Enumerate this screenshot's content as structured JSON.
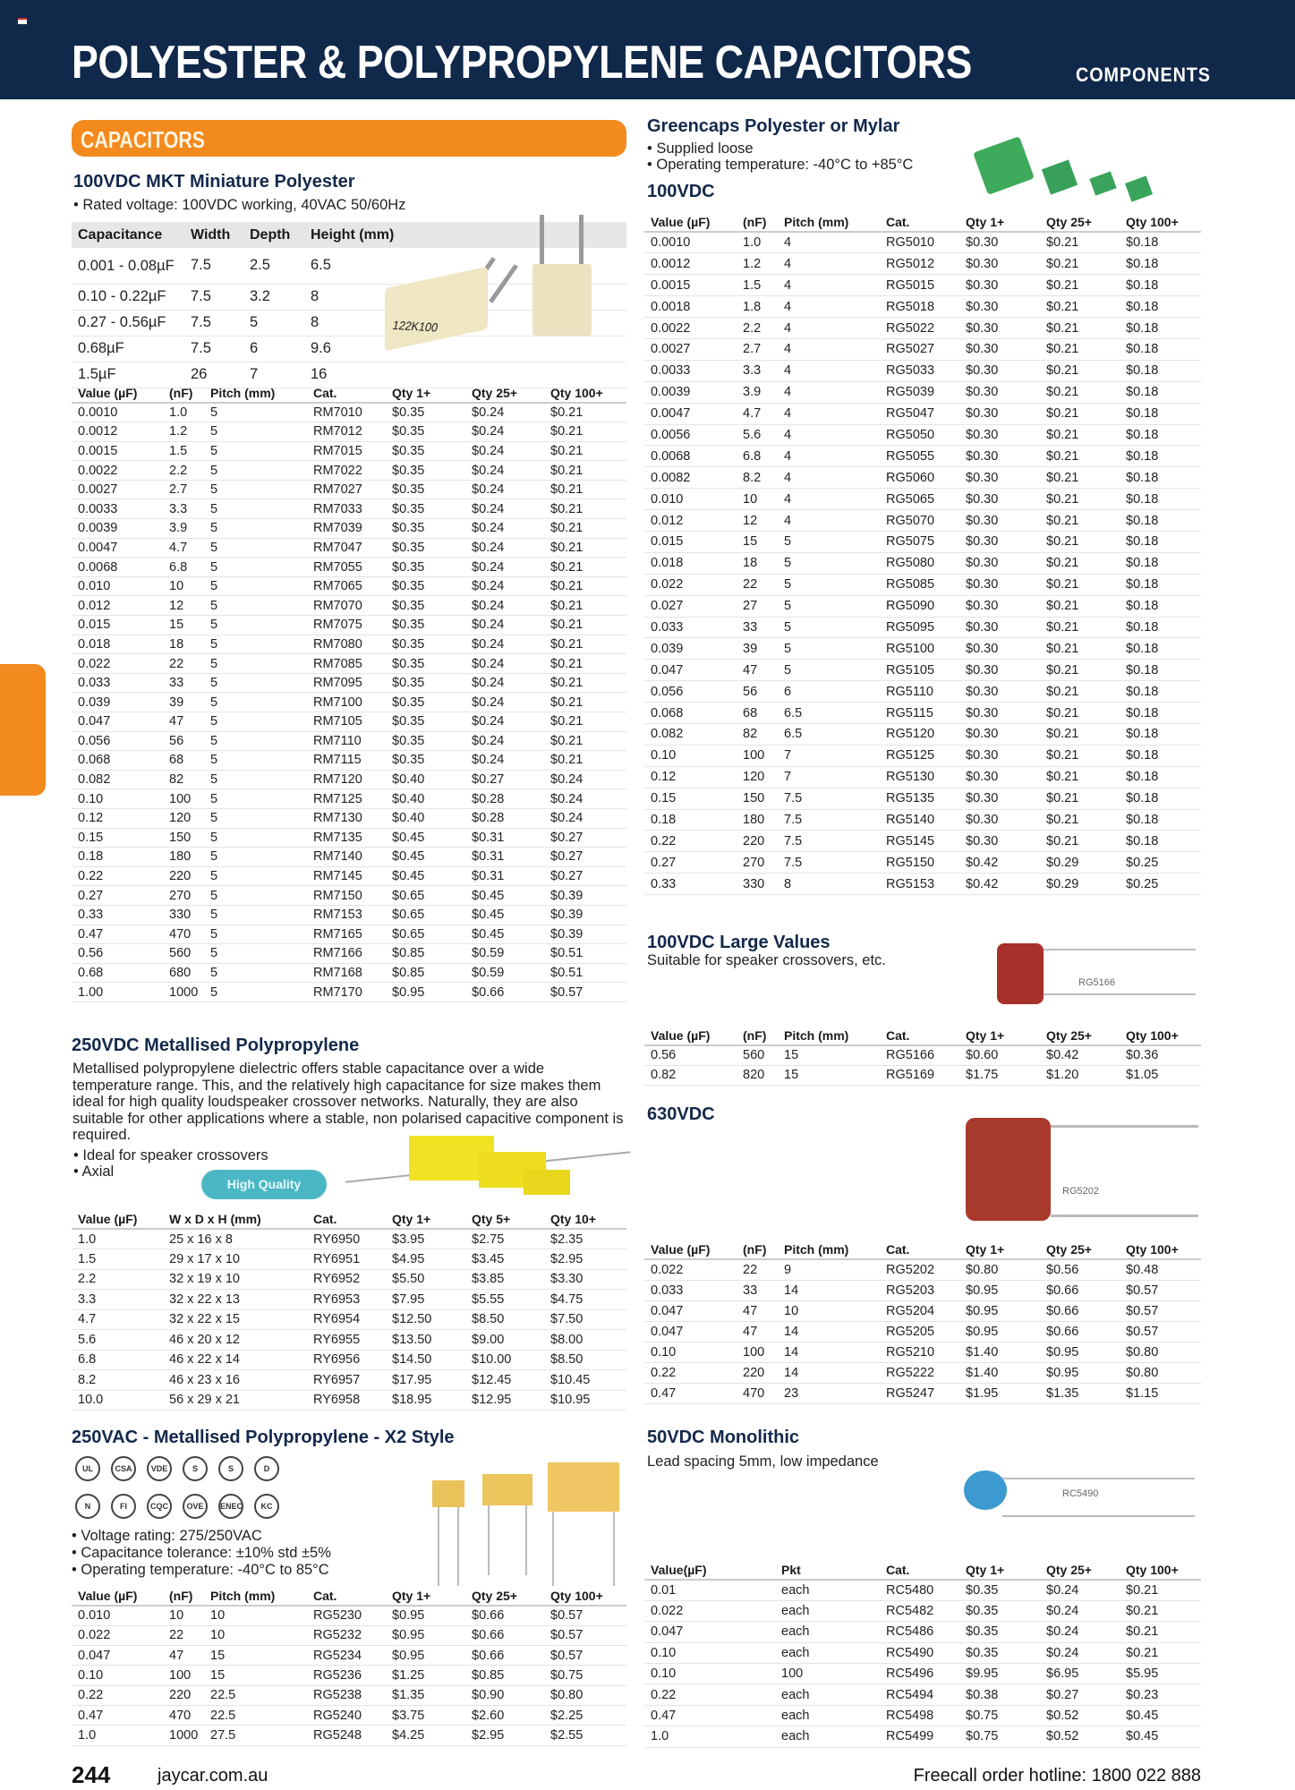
{
  "header": {
    "title": "POLYESTER & POLYPROPYLENE CAPACITORS",
    "section": "COMPONENTS"
  },
  "category_bar": "CAPACITORS",
  "mkt": {
    "title": "100VDC MKT Miniature Polyester",
    "bullet": "• Rated voltage: 100VDC working, 40VAC 50/60Hz",
    "image_label": "122K100",
    "spec": {
      "headers": [
        "Capacitance",
        "Width",
        "Depth",
        "Height (mm)"
      ],
      "rows": [
        [
          "0.001 - 0.08µF",
          "7.5",
          "2.5",
          "6.5"
        ],
        [
          "0.10 - 0.22µF",
          "7.5",
          "3.2",
          "8"
        ],
        [
          "0.27 - 0.56µF",
          "7.5",
          "5",
          "8"
        ],
        [
          "0.68µF",
          "7.5",
          "6",
          "9.6"
        ],
        [
          "1.5µF",
          "26",
          "7",
          "16"
        ]
      ]
    },
    "table": {
      "headers": [
        "Value (µF)",
        "(nF)",
        "Pitch (mm)",
        "Cat.",
        "Qty 1+",
        "Qty 25+",
        "Qty 100+"
      ],
      "rows": [
        [
          "0.0010",
          "1.0",
          "5",
          "RM7010",
          "$0.35",
          "$0.24",
          "$0.21"
        ],
        [
          "0.0012",
          "1.2",
          "5",
          "RM7012",
          "$0.35",
          "$0.24",
          "$0.21"
        ],
        [
          "0.0015",
          "1.5",
          "5",
          "RM7015",
          "$0.35",
          "$0.24",
          "$0.21"
        ],
        [
          "0.0022",
          "2.2",
          "5",
          "RM7022",
          "$0.35",
          "$0.24",
          "$0.21"
        ],
        [
          "0.0027",
          "2.7",
          "5",
          "RM7027",
          "$0.35",
          "$0.24",
          "$0.21"
        ],
        [
          "0.0033",
          "3.3",
          "5",
          "RM7033",
          "$0.35",
          "$0.24",
          "$0.21"
        ],
        [
          "0.0039",
          "3.9",
          "5",
          "RM7039",
          "$0.35",
          "$0.24",
          "$0.21"
        ],
        [
          "0.0047",
          "4.7",
          "5",
          "RM7047",
          "$0.35",
          "$0.24",
          "$0.21"
        ],
        [
          "0.0068",
          "6.8",
          "5",
          "RM7055",
          "$0.35",
          "$0.24",
          "$0.21"
        ],
        [
          "0.010",
          "10",
          "5",
          "RM7065",
          "$0.35",
          "$0.24",
          "$0.21"
        ],
        [
          "0.012",
          "12",
          "5",
          "RM7070",
          "$0.35",
          "$0.24",
          "$0.21"
        ],
        [
          "0.015",
          "15",
          "5",
          "RM7075",
          "$0.35",
          "$0.24",
          "$0.21"
        ],
        [
          "0.018",
          "18",
          "5",
          "RM7080",
          "$0.35",
          "$0.24",
          "$0.21"
        ],
        [
          "0.022",
          "22",
          "5",
          "RM7085",
          "$0.35",
          "$0.24",
          "$0.21"
        ],
        [
          "0.033",
          "33",
          "5",
          "RM7095",
          "$0.35",
          "$0.24",
          "$0.21"
        ],
        [
          "0.039",
          "39",
          "5",
          "RM7100",
          "$0.35",
          "$0.24",
          "$0.21"
        ],
        [
          "0.047",
          "47",
          "5",
          "RM7105",
          "$0.35",
          "$0.24",
          "$0.21"
        ],
        [
          "0.056",
          "56",
          "5",
          "RM7110",
          "$0.35",
          "$0.24",
          "$0.21"
        ],
        [
          "0.068",
          "68",
          "5",
          "RM7115",
          "$0.35",
          "$0.24",
          "$0.21"
        ],
        [
          "0.082",
          "82",
          "5",
          "RM7120",
          "$0.40",
          "$0.27",
          "$0.24"
        ],
        [
          "0.10",
          "100",
          "5",
          "RM7125",
          "$0.40",
          "$0.28",
          "$0.24"
        ],
        [
          "0.12",
          "120",
          "5",
          "RM7130",
          "$0.40",
          "$0.28",
          "$0.24"
        ],
        [
          "0.15",
          "150",
          "5",
          "RM7135",
          "$0.45",
          "$0.31",
          "$0.27"
        ],
        [
          "0.18",
          "180",
          "5",
          "RM7140",
          "$0.45",
          "$0.31",
          "$0.27"
        ],
        [
          "0.22",
          "220",
          "5",
          "RM7145",
          "$0.45",
          "$0.31",
          "$0.27"
        ],
        [
          "0.27",
          "270",
          "5",
          "RM7150",
          "$0.65",
          "$0.45",
          "$0.39"
        ],
        [
          "0.33",
          "330",
          "5",
          "RM7153",
          "$0.65",
          "$0.45",
          "$0.39"
        ],
        [
          "0.47",
          "470",
          "5",
          "RM7165",
          "$0.65",
          "$0.45",
          "$0.39"
        ],
        [
          "0.56",
          "560",
          "5",
          "RM7166",
          "$0.85",
          "$0.59",
          "$0.51"
        ],
        [
          "0.68",
          "680",
          "5",
          "RM7168",
          "$0.85",
          "$0.59",
          "$0.51"
        ],
        [
          "1.00",
          "1000",
          "5",
          "RM7170",
          "$0.95",
          "$0.66",
          "$0.57"
        ]
      ]
    }
  },
  "ry": {
    "title": "250VDC Metallised Polypropylene",
    "description": "Metallised polypropylene dielectric offers stable capacitance over a wide temperature range. This, and the relatively high capacitance for size makes them ideal for high quality loudspeaker crossover networks. Naturally, they are also suitable for other applications where a stable, non polarised capacitive component is required.",
    "bullets": [
      "• Ideal for speaker crossovers",
      "• Axial"
    ],
    "badge": "High Quality",
    "table": {
      "headers": [
        "Value (µF)",
        "W x D x H (mm)",
        "Cat.",
        "Qty 1+",
        "Qty 5+",
        "Qty 10+"
      ],
      "rows": [
        [
          "1.0",
          "25 x 16 x 8",
          "RY6950",
          "$3.95",
          "$2.75",
          "$2.35"
        ],
        [
          "1.5",
          "29 x 17 x 10",
          "RY6951",
          "$4.95",
          "$3.45",
          "$2.95"
        ],
        [
          "2.2",
          "32 x 19 x 10",
          "RY6952",
          "$5.50",
          "$3.85",
          "$3.30"
        ],
        [
          "3.3",
          "32 x 22 x 13",
          "RY6953",
          "$7.95",
          "$5.55",
          "$4.75"
        ],
        [
          "4.7",
          "32 x 22 x 15",
          "RY6954",
          "$12.50",
          "$8.50",
          "$7.50"
        ],
        [
          "5.6",
          "46 x 20 x 12",
          "RY6955",
          "$13.50",
          "$9.00",
          "$8.00"
        ],
        [
          "6.8",
          "46 x 22 x 14",
          "RY6956",
          "$14.50",
          "$10.00",
          "$8.50"
        ],
        [
          "8.2",
          "46 x 23 x 16",
          "RY6957",
          "$17.95",
          "$12.45",
          "$10.45"
        ],
        [
          "10.0",
          "56 x 29 x 21",
          "RY6958",
          "$18.95",
          "$12.95",
          "$10.95"
        ]
      ]
    }
  },
  "x2": {
    "title": "250VAC - Metallised Polypropylene - X2 Style",
    "cert_marks": [
      "UL",
      "CSA",
      "VDE",
      "S",
      "S",
      "D",
      "N",
      "FI",
      "CQC",
      "OVE",
      "ENEC",
      "KC"
    ],
    "bullets": [
      "• Voltage rating: 275/250VAC",
      "• Capacitance tolerance: ±10% std ±5%",
      "• Operating temperature: -40°C to 85°C"
    ],
    "table": {
      "headers": [
        "Value (µF)",
        "(nF)",
        "Pitch (mm)",
        "Cat.",
        "Qty 1+",
        "Qty 25+",
        "Qty 100+"
      ],
      "rows": [
        [
          "0.010",
          "10",
          "10",
          "RG5230",
          "$0.95",
          "$0.66",
          "$0.57"
        ],
        [
          "0.022",
          "22",
          "10",
          "RG5232",
          "$0.95",
          "$0.66",
          "$0.57"
        ],
        [
          "0.047",
          "47",
          "15",
          "RG5234",
          "$0.95",
          "$0.66",
          "$0.57"
        ],
        [
          "0.10",
          "100",
          "15",
          "RG5236",
          "$1.25",
          "$0.85",
          "$0.75"
        ],
        [
          "0.22",
          "220",
          "22.5",
          "RG5238",
          "$1.35",
          "$0.90",
          "$0.80"
        ],
        [
          "0.47",
          "470",
          "22.5",
          "RG5240",
          "$3.75",
          "$2.60",
          "$2.25"
        ],
        [
          "1.0",
          "1000",
          "27.5",
          "RG5248",
          "$4.25",
          "$2.95",
          "$2.55"
        ]
      ]
    }
  },
  "greencaps": {
    "title": "Greencaps Polyester or Mylar",
    "bullets": [
      "• Supplied loose",
      "• Operating temperature: -40°C to +85°C"
    ],
    "subtitle": "100VDC",
    "table": {
      "headers": [
        "Value (µF)",
        "(nF)",
        "Pitch (mm)",
        "Cat.",
        "Qty 1+",
        "Qty 25+",
        "Qty 100+"
      ],
      "rows": [
        [
          "0.0010",
          "1.0",
          "4",
          "RG5010",
          "$0.30",
          "$0.21",
          "$0.18"
        ],
        [
          "0.0012",
          "1.2",
          "4",
          "RG5012",
          "$0.30",
          "$0.21",
          "$0.18"
        ],
        [
          "0.0015",
          "1.5",
          "4",
          "RG5015",
          "$0.30",
          "$0.21",
          "$0.18"
        ],
        [
          "0.0018",
          "1.8",
          "4",
          "RG5018",
          "$0.30",
          "$0.21",
          "$0.18"
        ],
        [
          "0.0022",
          "2.2",
          "4",
          "RG5022",
          "$0.30",
          "$0.21",
          "$0.18"
        ],
        [
          "0.0027",
          "2.7",
          "4",
          "RG5027",
          "$0.30",
          "$0.21",
          "$0.18"
        ],
        [
          "0.0033",
          "3.3",
          "4",
          "RG5033",
          "$0.30",
          "$0.21",
          "$0.18"
        ],
        [
          "0.0039",
          "3.9",
          "4",
          "RG5039",
          "$0.30",
          "$0.21",
          "$0.18"
        ],
        [
          "0.0047",
          "4.7",
          "4",
          "RG5047",
          "$0.30",
          "$0.21",
          "$0.18"
        ],
        [
          "0.0056",
          "5.6",
          "4",
          "RG5050",
          "$0.30",
          "$0.21",
          "$0.18"
        ],
        [
          "0.0068",
          "6.8",
          "4",
          "RG5055",
          "$0.30",
          "$0.21",
          "$0.18"
        ],
        [
          "0.0082",
          "8.2",
          "4",
          "RG5060",
          "$0.30",
          "$0.21",
          "$0.18"
        ],
        [
          "0.010",
          "10",
          "4",
          "RG5065",
          "$0.30",
          "$0.21",
          "$0.18"
        ],
        [
          "0.012",
          "12",
          "4",
          "RG5070",
          "$0.30",
          "$0.21",
          "$0.18"
        ],
        [
          "0.015",
          "15",
          "5",
          "RG5075",
          "$0.30",
          "$0.21",
          "$0.18"
        ],
        [
          "0.018",
          "18",
          "5",
          "RG5080",
          "$0.30",
          "$0.21",
          "$0.18"
        ],
        [
          "0.022",
          "22",
          "5",
          "RG5085",
          "$0.30",
          "$0.21",
          "$0.18"
        ],
        [
          "0.027",
          "27",
          "5",
          "RG5090",
          "$0.30",
          "$0.21",
          "$0.18"
        ],
        [
          "0.033",
          "33",
          "5",
          "RG5095",
          "$0.30",
          "$0.21",
          "$0.18"
        ],
        [
          "0.039",
          "39",
          "5",
          "RG5100",
          "$0.30",
          "$0.21",
          "$0.18"
        ],
        [
          "0.047",
          "47",
          "5",
          "RG5105",
          "$0.30",
          "$0.21",
          "$0.18"
        ],
        [
          "0.056",
          "56",
          "6",
          "RG5110",
          "$0.30",
          "$0.21",
          "$0.18"
        ],
        [
          "0.068",
          "68",
          "6.5",
          "RG5115",
          "$0.30",
          "$0.21",
          "$0.18"
        ],
        [
          "0.082",
          "82",
          "6.5",
          "RG5120",
          "$0.30",
          "$0.21",
          "$0.18"
        ],
        [
          "0.10",
          "100",
          "7",
          "RG5125",
          "$0.30",
          "$0.21",
          "$0.18"
        ],
        [
          "0.12",
          "120",
          "7",
          "RG5130",
          "$0.30",
          "$0.21",
          "$0.18"
        ],
        [
          "0.15",
          "150",
          "7.5",
          "RG5135",
          "$0.30",
          "$0.21",
          "$0.18"
        ],
        [
          "0.18",
          "180",
          "7.5",
          "RG5140",
          "$0.30",
          "$0.21",
          "$0.18"
        ],
        [
          "0.22",
          "220",
          "7.5",
          "RG5145",
          "$0.30",
          "$0.21",
          "$0.18"
        ],
        [
          "0.27",
          "270",
          "7.5",
          "RG5150",
          "$0.42",
          "$0.29",
          "$0.25"
        ],
        [
          "0.33",
          "330",
          "8",
          "RG5153",
          "$0.42",
          "$0.29",
          "$0.25"
        ]
      ]
    }
  },
  "large": {
    "title": "100VDC Large Values",
    "subtitle": "Suitable for speaker crossovers, etc.",
    "image_label": "RG5166",
    "table": {
      "headers": [
        "Value (µF)",
        "(nF)",
        "Pitch (mm)",
        "Cat.",
        "Qty 1+",
        "Qty 25+",
        "Qty 100+"
      ],
      "rows": [
        [
          "0.56",
          "560",
          "15",
          "RG5166",
          "$0.60",
          "$0.42",
          "$0.36"
        ],
        [
          "0.82",
          "820",
          "15",
          "RG5169",
          "$1.75",
          "$1.20",
          "$1.05"
        ]
      ]
    }
  },
  "v630": {
    "title": "630VDC",
    "image_label": "RG5202",
    "table": {
      "headers": [
        "Value (µF)",
        "(nF)",
        "Pitch (mm)",
        "Cat.",
        "Qty 1+",
        "Qty 25+",
        "Qty 100+"
      ],
      "rows": [
        [
          "0.022",
          "22",
          "9",
          "RG5202",
          "$0.80",
          "$0.56",
          "$0.48"
        ],
        [
          "0.033",
          "33",
          "14",
          "RG5203",
          "$0.95",
          "$0.66",
          "$0.57"
        ],
        [
          "0.047",
          "47",
          "10",
          "RG5204",
          "$0.95",
          "$0.66",
          "$0.57"
        ],
        [
          "0.047",
          "47",
          "14",
          "RG5205",
          "$0.95",
          "$0.66",
          "$0.57"
        ],
        [
          "0.10",
          "100",
          "14",
          "RG5210",
          "$1.40",
          "$0.95",
          "$0.80"
        ],
        [
          "0.22",
          "220",
          "14",
          "RG5222",
          "$1.40",
          "$0.95",
          "$0.80"
        ],
        [
          "0.47",
          "470",
          "23",
          "RG5247",
          "$1.95",
          "$1.35",
          "$1.15"
        ]
      ]
    }
  },
  "mono": {
    "title": "50VDC Monolithic",
    "subtitle": "Lead spacing 5mm, low impedance",
    "image_label": "RC5490",
    "table": {
      "headers": [
        "Value(µF)",
        "Pkt",
        "Cat.",
        "Qty 1+",
        "Qty 25+",
        "Qty 100+"
      ],
      "rows": [
        [
          "0.01",
          "each",
          "RC5480",
          "$0.35",
          "$0.24",
          "$0.21"
        ],
        [
          "0.022",
          "each",
          "RC5482",
          "$0.35",
          "$0.24",
          "$0.21"
        ],
        [
          "0.047",
          "each",
          "RC5486",
          "$0.35",
          "$0.24",
          "$0.21"
        ],
        [
          "0.10",
          "each",
          "RC5490",
          "$0.35",
          "$0.24",
          "$0.21"
        ],
        [
          "0.10",
          "100",
          "RC5496",
          "$9.95",
          "$6.95",
          "$5.95"
        ],
        [
          "0.22",
          "each",
          "RC5494",
          "$0.38",
          "$0.27",
          "$0.23"
        ],
        [
          "0.47",
          "each",
          "RC5498",
          "$0.75",
          "$0.52",
          "$0.45"
        ],
        [
          "1.0",
          "each",
          "RC5499",
          "$0.75",
          "$0.52",
          "$0.45"
        ]
      ]
    }
  },
  "footer": {
    "page": "244",
    "site": "jaycar.com.au",
    "hotline": "Freecall order hotline: 1800 022 888"
  },
  "colors": {
    "header_bg": "#10284a",
    "accent_orange": "#f28a1e",
    "badge_teal": "#4bb7c5",
    "heading_navy": "#13294b"
  }
}
